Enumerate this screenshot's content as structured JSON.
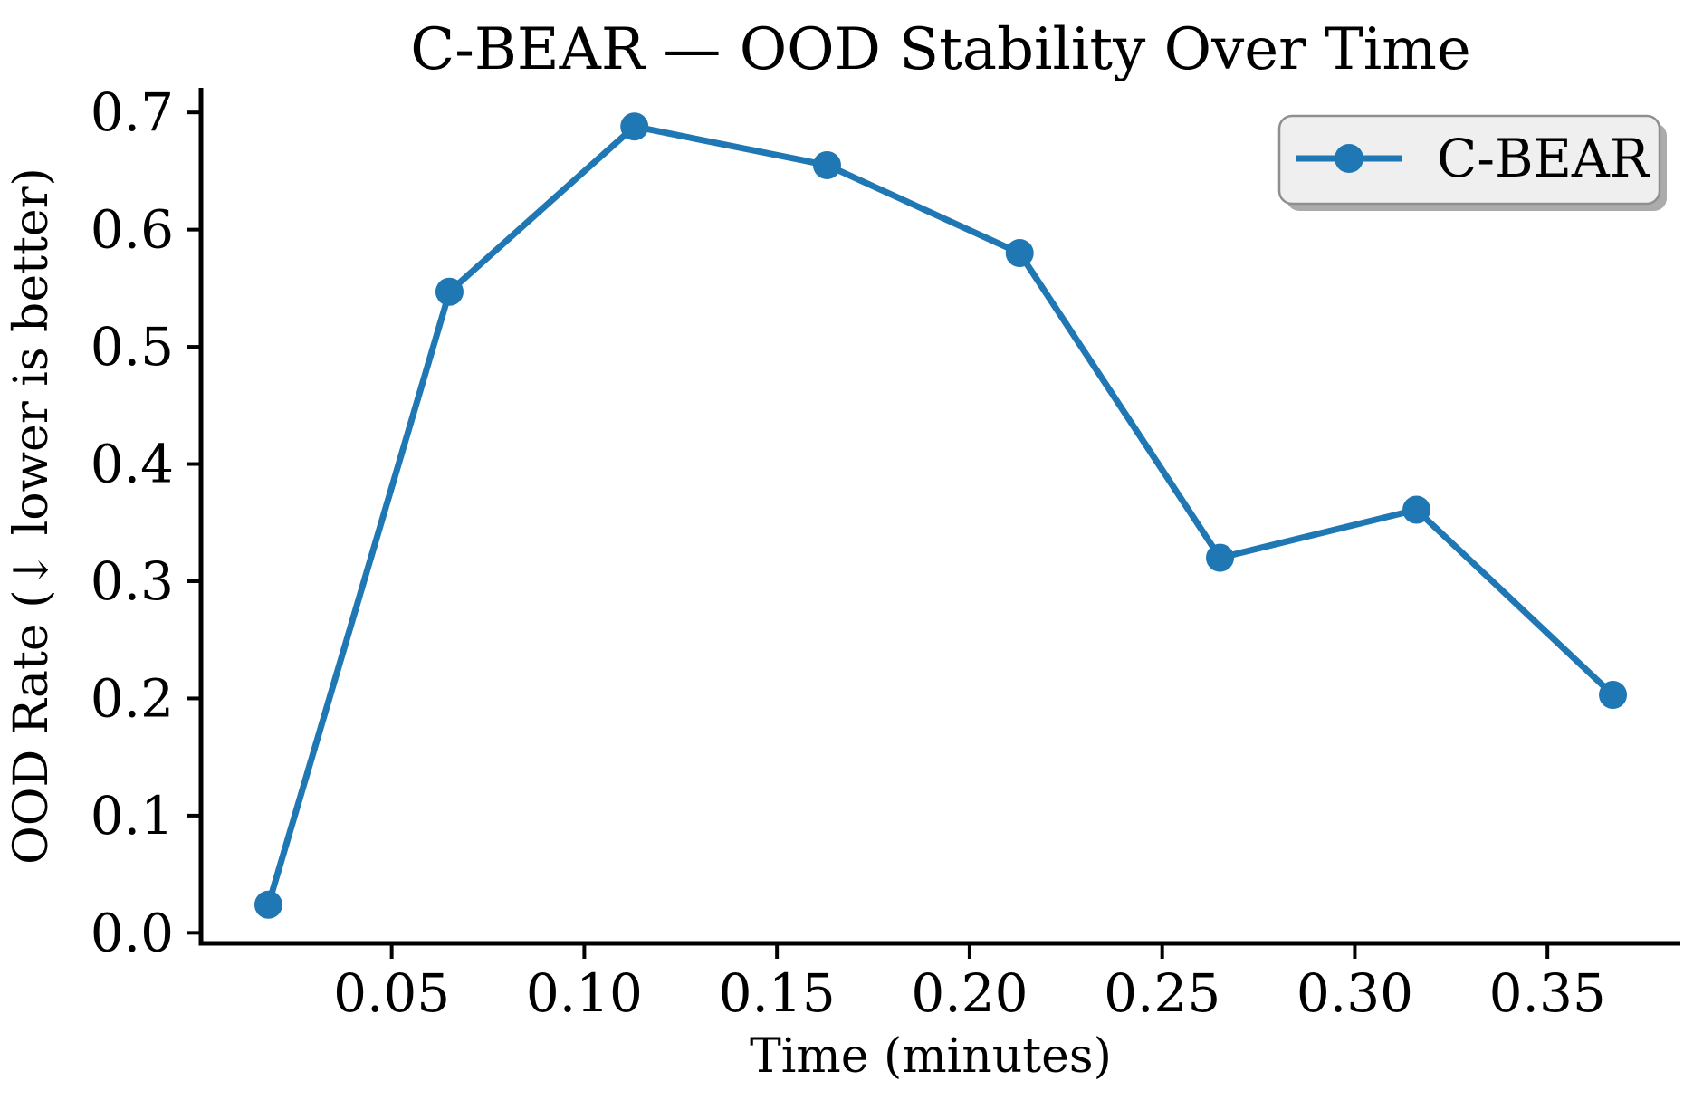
{
  "figure": {
    "background": "#ffffff",
    "text_color": "#000000",
    "spine_color": "#000000"
  },
  "chart_data": {
    "type": "line",
    "title": "C-BEAR — OOD Stability Over Time",
    "xlabel": "Time (minutes)",
    "ylabel": "OOD Rate (↓ lower is better)",
    "grid": false,
    "spines": [
      "left",
      "bottom"
    ],
    "xlim": [
      0.0005,
      0.3845
    ],
    "ylim": [
      -0.009,
      0.721
    ],
    "xticks": {
      "values": [
        0.05,
        0.1,
        0.15,
        0.2,
        0.25,
        0.3,
        0.35
      ],
      "labels": [
        "0.05",
        "0.10",
        "0.15",
        "0.20",
        "0.25",
        "0.30",
        "0.35"
      ]
    },
    "yticks": {
      "values": [
        0.0,
        0.1,
        0.2,
        0.3,
        0.4,
        0.5,
        0.6,
        0.7
      ],
      "labels": [
        "0.0",
        "0.1",
        "0.2",
        "0.3",
        "0.4",
        "0.5",
        "0.6",
        "0.7"
      ]
    },
    "series": [
      {
        "name": "C-BEAR",
        "color": "#1f77b4",
        "marker": "circle",
        "x": [
          0.018,
          0.065,
          0.113,
          0.163,
          0.213,
          0.265,
          0.316,
          0.367
        ],
        "y": [
          0.024,
          0.547,
          0.688,
          0.655,
          0.58,
          0.32,
          0.361,
          0.203
        ]
      }
    ],
    "legend": {
      "position": "upper-right",
      "facecolor": "#efefef",
      "edgecolor": "#8f8f8f",
      "shadowcolor": "#ababab",
      "entries": [
        {
          "label": "C-BEAR",
          "color": "#1f77b4",
          "marker": "circle"
        }
      ]
    }
  }
}
